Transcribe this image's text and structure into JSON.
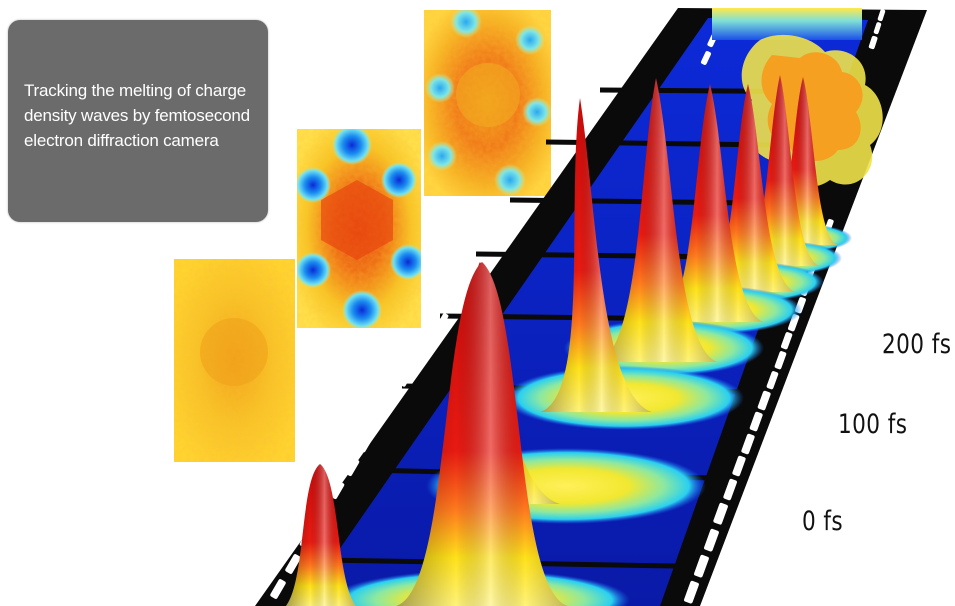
{
  "caption": {
    "text": "Tracking the melting of charge density waves by femtosecond electron diffraction camera"
  },
  "time_labels": {
    "t200": "200 fs",
    "t100": "100 fs",
    "t0": "0 fs"
  },
  "colors": {
    "caption_bg": "#6b6b6b",
    "peak_red": "#d40c0c",
    "peak_yellow": "#ffe600",
    "film_black": "#0a0a0a",
    "frame_blue": "#1030d0"
  }
}
